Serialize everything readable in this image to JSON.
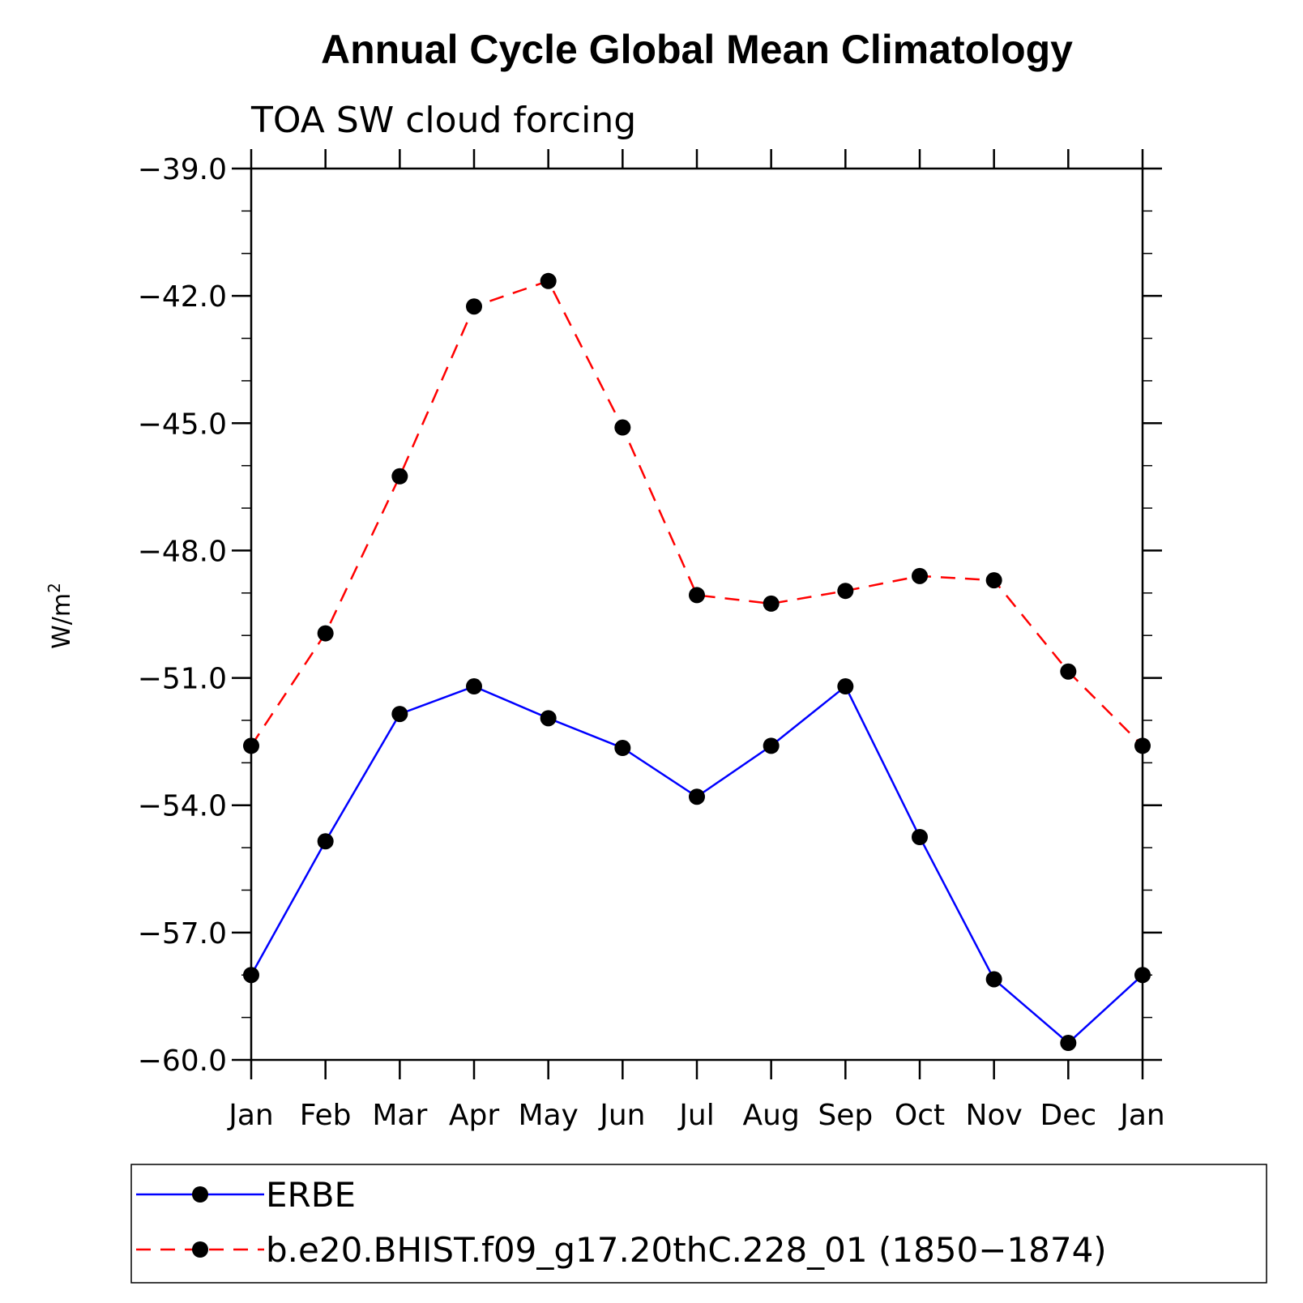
{
  "chart_data": {
    "type": "line",
    "title": "Annual Cycle Global Mean Climatology",
    "subtitle": "TOA SW cloud forcing",
    "ylabel": "W/m",
    "ylabel_superscript": "2",
    "categories": [
      "Jan",
      "Feb",
      "Mar",
      "Apr",
      "May",
      "Jun",
      "Jul",
      "Aug",
      "Sep",
      "Oct",
      "Nov",
      "Dec",
      "Jan"
    ],
    "ylim": [
      -60.0,
      -39.0
    ],
    "yticks": [
      -39.0,
      -42.0,
      -45.0,
      -48.0,
      -51.0,
      -54.0,
      -57.0,
      -60.0
    ],
    "ytick_labels": [
      "−39.0",
      "−42.0",
      "−45.0",
      "−48.0",
      "−51.0",
      "−54.0",
      "−57.0",
      "−60.0"
    ],
    "grid": false,
    "legend_placement": "bottom",
    "series": [
      {
        "name": "ERBE",
        "color": "#0000ff",
        "dash": "solid",
        "values": [
          -58.0,
          -54.85,
          -51.85,
          -51.2,
          -51.95,
          -52.65,
          -53.8,
          -52.6,
          -51.2,
          -54.75,
          -58.1,
          -59.6,
          -58.0
        ]
      },
      {
        "name": "b.e20.BHIST.f09_g17.20thC.228_01 (1850−1874)",
        "color": "#ff0000",
        "dash": "dashed",
        "values": [
          -52.6,
          -49.95,
          -46.25,
          -42.25,
          -41.65,
          -45.1,
          -49.05,
          -49.25,
          -48.95,
          -48.6,
          -48.7,
          -50.85,
          -52.6
        ]
      }
    ]
  }
}
